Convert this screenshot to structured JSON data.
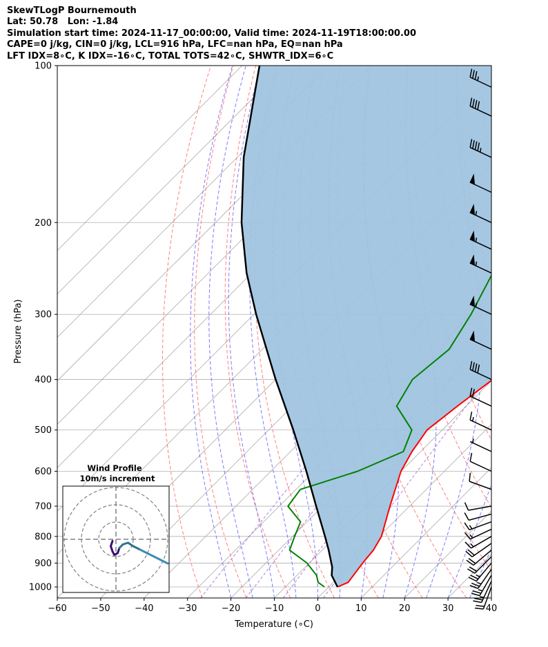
{
  "title": {
    "lines": [
      "SkewTLogP Bournemouth",
      "Lat: 50.78   Lon: -1.84",
      "Simulation start time: 2024-11-17_00:00:00, Valid time: 2024-11-19T18:00:00.00",
      "CAPE=0 j/kg, CIN=0 j/kg, LCL=916 hPa, LFC=nan hPa, EQ=nan hPa",
      "LFT IDX=8∘C, K IDX=-16∘C, TOTAL TOTS=42∘C, SHWTR_IDX=6∘C"
    ]
  },
  "chart_data": [
    {
      "type": "line",
      "subtype": "skew-t log-p",
      "xlabel": "Temperature (∘C)",
      "ylabel": "Pressure (hPa)",
      "xlim": [
        -60,
        40
      ],
      "ylim": [
        1050,
        100
      ],
      "yscale": "log",
      "skew_degrees": 45,
      "x_ticks": [
        -60,
        -50,
        -40,
        -30,
        -20,
        -10,
        0,
        10,
        20,
        30,
        40
      ],
      "x_tick_labels": [
        "−60",
        "−50",
        "−40",
        "−30",
        "−20",
        "−10",
        "0",
        "10",
        "20",
        "30",
        "40"
      ],
      "y_ticks": [
        100,
        200,
        300,
        400,
        500,
        600,
        700,
        800,
        900,
        1000
      ],
      "grid": true,
      "series": [
        {
          "role": "temperature",
          "color": "#ff0000",
          "points": [
            [
              1000,
              2.0
            ],
            [
              980,
              3.4
            ],
            [
              950,
              3.0
            ],
            [
              900,
              2.3
            ],
            [
              850,
              1.8
            ],
            [
              800,
              0.5
            ],
            [
              700,
              -4.5
            ],
            [
              600,
              -10.0
            ],
            [
              550,
              -12.0
            ],
            [
              500,
              -13.5
            ],
            [
              450,
              -12.0
            ],
            [
              400,
              -10.0
            ],
            [
              350,
              -10.5
            ],
            [
              300,
              -12.0
            ],
            [
              250,
              -13.5
            ],
            [
              200,
              -16.0
            ],
            [
              150,
              -17.0
            ],
            [
              120,
              -13.0
            ],
            [
              110,
              -11.0
            ],
            [
              100,
              -11.0
            ]
          ]
        },
        {
          "role": "dewpoint",
          "color": "#008000",
          "points": [
            [
              1000,
              -1.0
            ],
            [
              980,
              -3.5
            ],
            [
              950,
              -5.5
            ],
            [
              900,
              -10.5
            ],
            [
              850,
              -17.5
            ],
            [
              800,
              -19.5
            ],
            [
              750,
              -21.5
            ],
            [
              700,
              -28.0
            ],
            [
              650,
              -29.0
            ],
            [
              600,
              -20.0
            ],
            [
              550,
              -14.0
            ],
            [
              500,
              -17.0
            ],
            [
              450,
              -26.0
            ],
            [
              400,
              -28.5
            ],
            [
              350,
              -27.0
            ],
            [
              300,
              -30.0
            ],
            [
              250,
              -34.5
            ],
            [
              200,
              -41.0
            ],
            [
              170,
              -43.0
            ],
            [
              150,
              -44.0
            ],
            [
              130,
              -44.0
            ],
            [
              120,
              -44.5
            ],
            [
              100,
              -49.0
            ]
          ]
        },
        {
          "role": "parcel",
          "color": "#000000",
          "points": [
            [
              1000,
              2.0
            ],
            [
              950,
              -2.0
            ],
            [
              916,
              -3.8
            ],
            [
              850,
              -8.5
            ],
            [
              800,
              -12.5
            ],
            [
              700,
              -21.5
            ],
            [
              600,
              -31.8
            ],
            [
              500,
              -44.3
            ],
            [
              400,
              -60.0
            ],
            [
              300,
              -79.5
            ],
            [
              250,
              -91.2
            ],
            [
              200,
              -104.0
            ],
            [
              150,
              -118.5
            ],
            [
              100,
              -136.0
            ]
          ]
        }
      ],
      "shaded_area": {
        "between": [
          "parcel",
          "temperature"
        ],
        "color": "#a0c4e0"
      },
      "background_lines": {
        "isotherms_color": "#a9a9a9",
        "dry_adiabats_color": "#ff6060",
        "moist_adiabats_color": "#5a5aff",
        "mixing_ratio_color": "#9a45c8"
      },
      "wind_barbs": [
        {
          "p": 1000,
          "speed_kt": 20,
          "dir_deg": 200
        },
        {
          "p": 975,
          "speed_kt": 25,
          "dir_deg": 205
        },
        {
          "p": 950,
          "speed_kt": 25,
          "dir_deg": 210
        },
        {
          "p": 925,
          "speed_kt": 25,
          "dir_deg": 215
        },
        {
          "p": 900,
          "speed_kt": 25,
          "dir_deg": 220
        },
        {
          "p": 875,
          "speed_kt": 20,
          "dir_deg": 225
        },
        {
          "p": 850,
          "speed_kt": 20,
          "dir_deg": 230
        },
        {
          "p": 825,
          "speed_kt": 20,
          "dir_deg": 235
        },
        {
          "p": 800,
          "speed_kt": 15,
          "dir_deg": 240
        },
        {
          "p": 775,
          "speed_kt": 15,
          "dir_deg": 245
        },
        {
          "p": 750,
          "speed_kt": 15,
          "dir_deg": 250
        },
        {
          "p": 725,
          "speed_kt": 10,
          "dir_deg": 255
        },
        {
          "p": 700,
          "speed_kt": 10,
          "dir_deg": 260
        },
        {
          "p": 650,
          "speed_kt": 10,
          "dir_deg": 290
        },
        {
          "p": 600,
          "speed_kt": 10,
          "dir_deg": 295
        },
        {
          "p": 550,
          "speed_kt": 5,
          "dir_deg": 295
        },
        {
          "p": 500,
          "speed_kt": 15,
          "dir_deg": 295
        },
        {
          "p": 450,
          "speed_kt": 20,
          "dir_deg": 295
        },
        {
          "p": 400,
          "speed_kt": 40,
          "dir_deg": 295
        },
        {
          "p": 350,
          "speed_kt": 50,
          "dir_deg": 295
        },
        {
          "p": 300,
          "speed_kt": 55,
          "dir_deg": 295
        },
        {
          "p": 250,
          "speed_kt": 55,
          "dir_deg": 295
        },
        {
          "p": 225,
          "speed_kt": 55,
          "dir_deg": 295
        },
        {
          "p": 200,
          "speed_kt": 55,
          "dir_deg": 295
        },
        {
          "p": 175,
          "speed_kt": 50,
          "dir_deg": 295
        },
        {
          "p": 150,
          "speed_kt": 45,
          "dir_deg": 295
        },
        {
          "p": 125,
          "speed_kt": 40,
          "dir_deg": 295
        },
        {
          "p": 110,
          "speed_kt": 35,
          "dir_deg": 295
        }
      ]
    },
    {
      "type": "line",
      "subtype": "hodograph",
      "title": "Wind Profile",
      "subtitle": "10m/s increment",
      "rings": [
        10,
        20,
        30
      ],
      "colormap": [
        "#3b0f70",
        "#2c728e",
        "#3d8bb5"
      ],
      "points": [
        [
          -2,
          -1
        ],
        [
          -3,
          -4
        ],
        [
          -2,
          -7
        ],
        [
          -1,
          -9
        ],
        [
          1,
          -8
        ],
        [
          2,
          -5
        ],
        [
          4,
          -3
        ],
        [
          7,
          -2
        ],
        [
          10,
          -4
        ],
        [
          14,
          -6
        ],
        [
          18,
          -8
        ],
        [
          22,
          -10
        ],
        [
          26,
          -12
        ],
        [
          30,
          -14
        ]
      ]
    }
  ]
}
